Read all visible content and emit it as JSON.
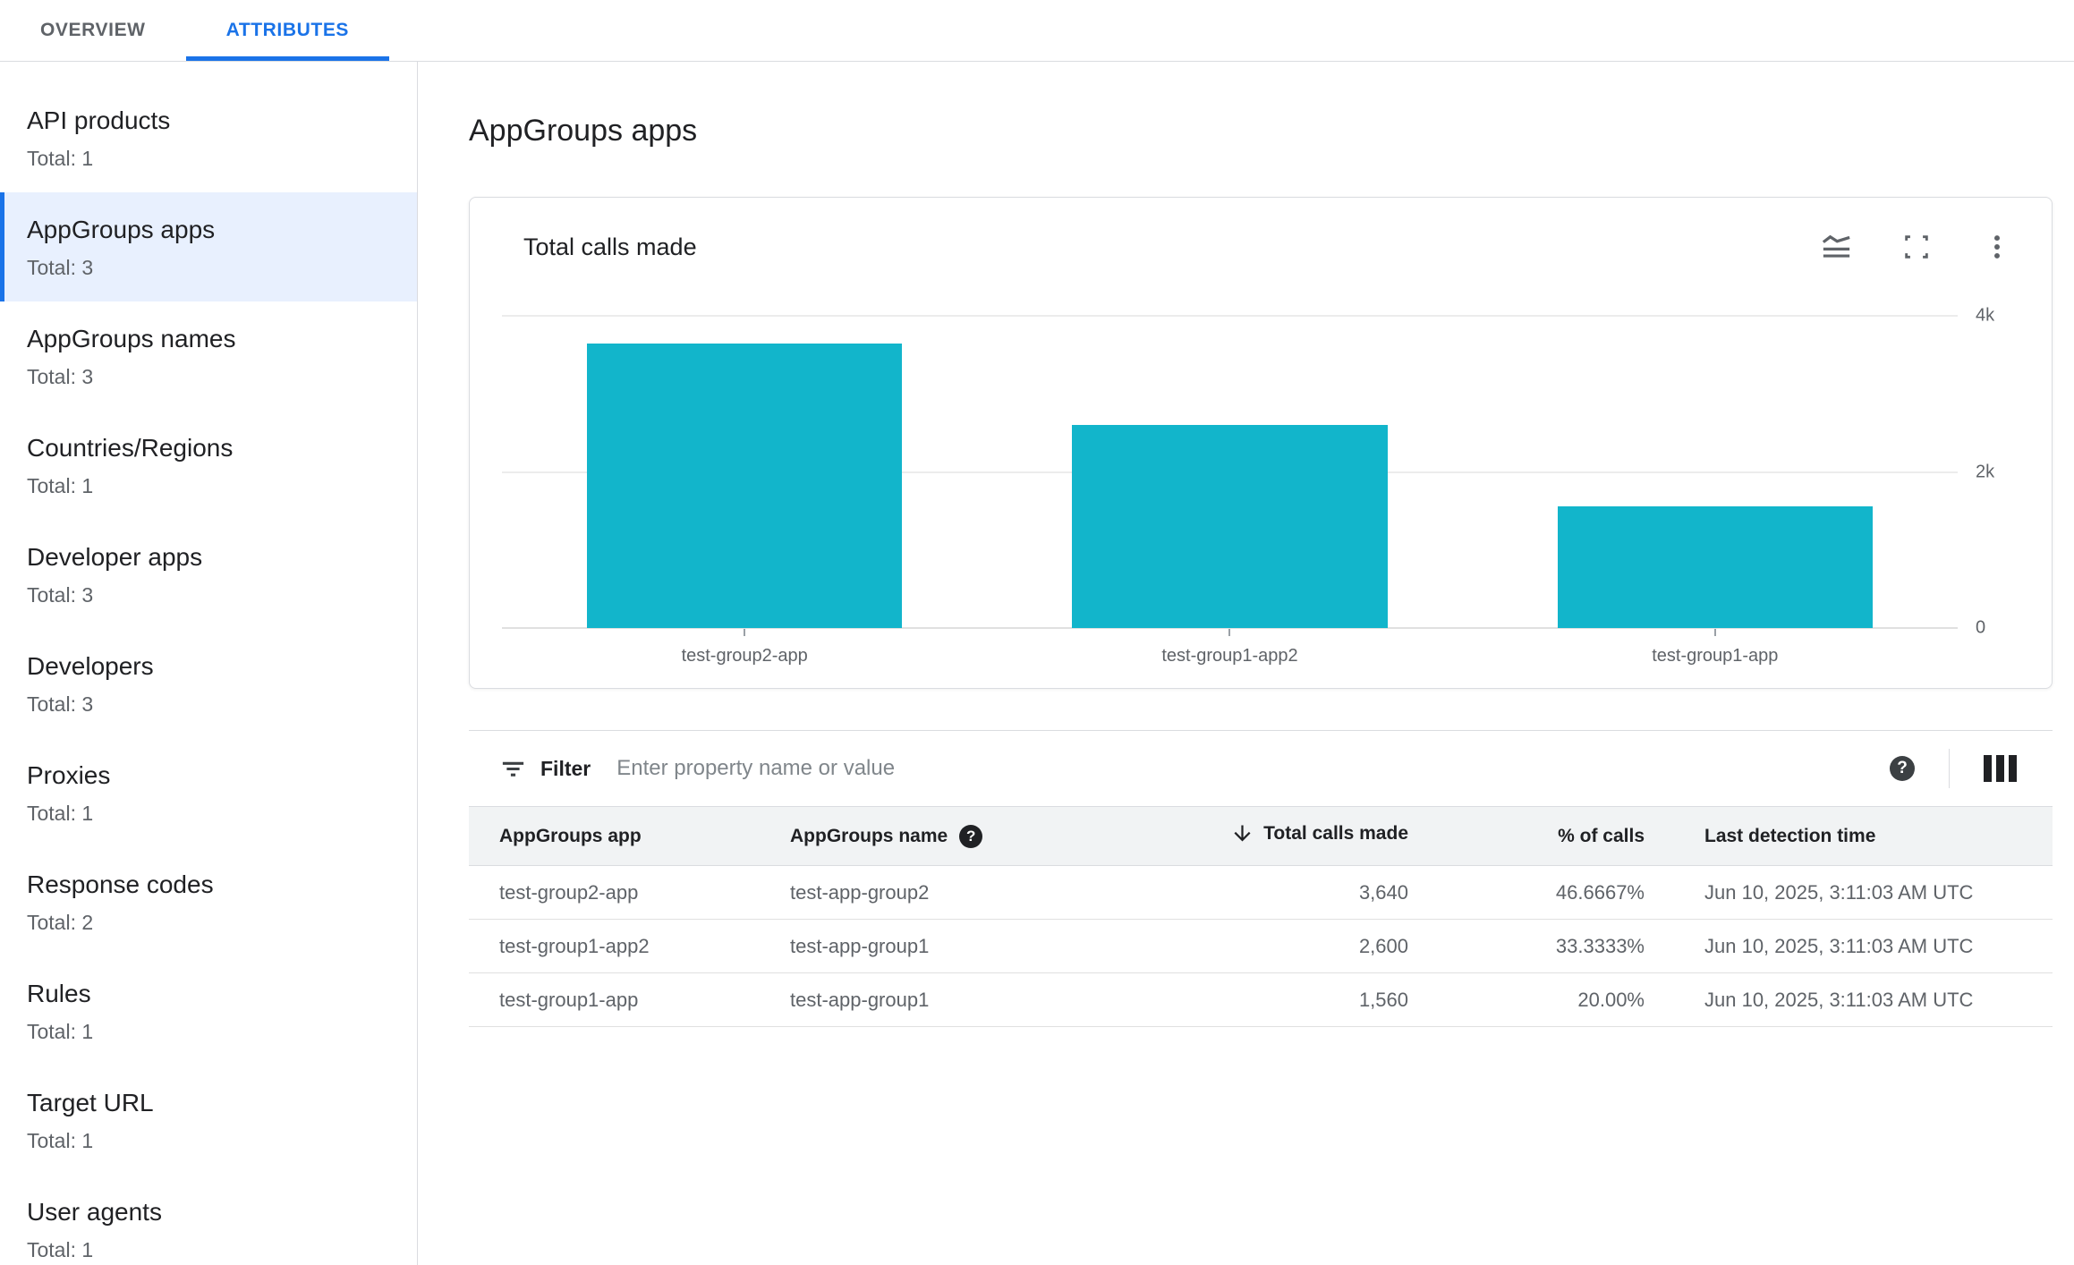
{
  "tabs": [
    {
      "label": "OVERVIEW",
      "active": false
    },
    {
      "label": "ATTRIBUTES",
      "active": true
    }
  ],
  "sidebar": {
    "items": [
      {
        "label": "API products",
        "total": "Total: 1",
        "selected": false
      },
      {
        "label": "AppGroups apps",
        "total": "Total: 3",
        "selected": true
      },
      {
        "label": "AppGroups names",
        "total": "Total: 3",
        "selected": false
      },
      {
        "label": "Countries/Regions",
        "total": "Total: 1",
        "selected": false
      },
      {
        "label": "Developer apps",
        "total": "Total: 3",
        "selected": false
      },
      {
        "label": "Developers",
        "total": "Total: 3",
        "selected": false
      },
      {
        "label": "Proxies",
        "total": "Total: 1",
        "selected": false
      },
      {
        "label": "Response codes",
        "total": "Total: 2",
        "selected": false
      },
      {
        "label": "Rules",
        "total": "Total: 1",
        "selected": false
      },
      {
        "label": "Target URL",
        "total": "Total: 1",
        "selected": false
      },
      {
        "label": "User agents",
        "total": "Total: 1",
        "selected": false
      }
    ]
  },
  "main": {
    "page_title": "AppGroups apps",
    "card": {
      "title": "Total calls made",
      "icons": [
        "area-chart-icon",
        "fullscreen-icon",
        "more-vert-icon"
      ]
    },
    "filter": {
      "label": "Filter",
      "placeholder": "Enter property name or value",
      "icons": [
        "filter-list-icon",
        "help-icon",
        "view-columns-icon"
      ]
    },
    "table": {
      "columns": [
        "AppGroups app",
        "AppGroups name",
        "Total calls made",
        "% of calls",
        "Last detection time"
      ],
      "sort": {
        "column": "Total calls made",
        "direction": "descending"
      },
      "rows": [
        {
          "app": "test-group2-app",
          "name": "test-app-group2",
          "calls": "3,640",
          "pct": "46.6667%",
          "time": "Jun 10, 2025, 3:11:03 AM UTC"
        },
        {
          "app": "test-group1-app2",
          "name": "test-app-group1",
          "calls": "2,600",
          "pct": "33.3333%",
          "time": "Jun 10, 2025, 3:11:03 AM UTC"
        },
        {
          "app": "test-group1-app",
          "name": "test-app-group1",
          "calls": "1,560",
          "pct": "20.00%",
          "time": "Jun 10, 2025, 3:11:03 AM UTC"
        }
      ]
    }
  },
  "chart_data": {
    "type": "bar",
    "title": "Total calls made",
    "categories": [
      "test-group2-app",
      "test-group1-app2",
      "test-group1-app"
    ],
    "values": [
      3640,
      2600,
      1560
    ],
    "ylim": [
      0,
      4000
    ],
    "yticks": [
      {
        "label": "4k",
        "value": 4000
      },
      {
        "label": "2k",
        "value": 2000
      },
      {
        "label": "0",
        "value": 0
      }
    ],
    "bar_color": "#12b5cb",
    "grid": true,
    "legend": false,
    "ytick_side": "right"
  },
  "colors": {
    "accent_blue": "#1a73e8",
    "selected_bg": "#e8f0fe",
    "bar_teal": "#12b5cb",
    "text_dark": "#202124",
    "text_gray": "#5f6368",
    "border_gray": "#dadce0",
    "header_bg": "#f1f3f4"
  }
}
